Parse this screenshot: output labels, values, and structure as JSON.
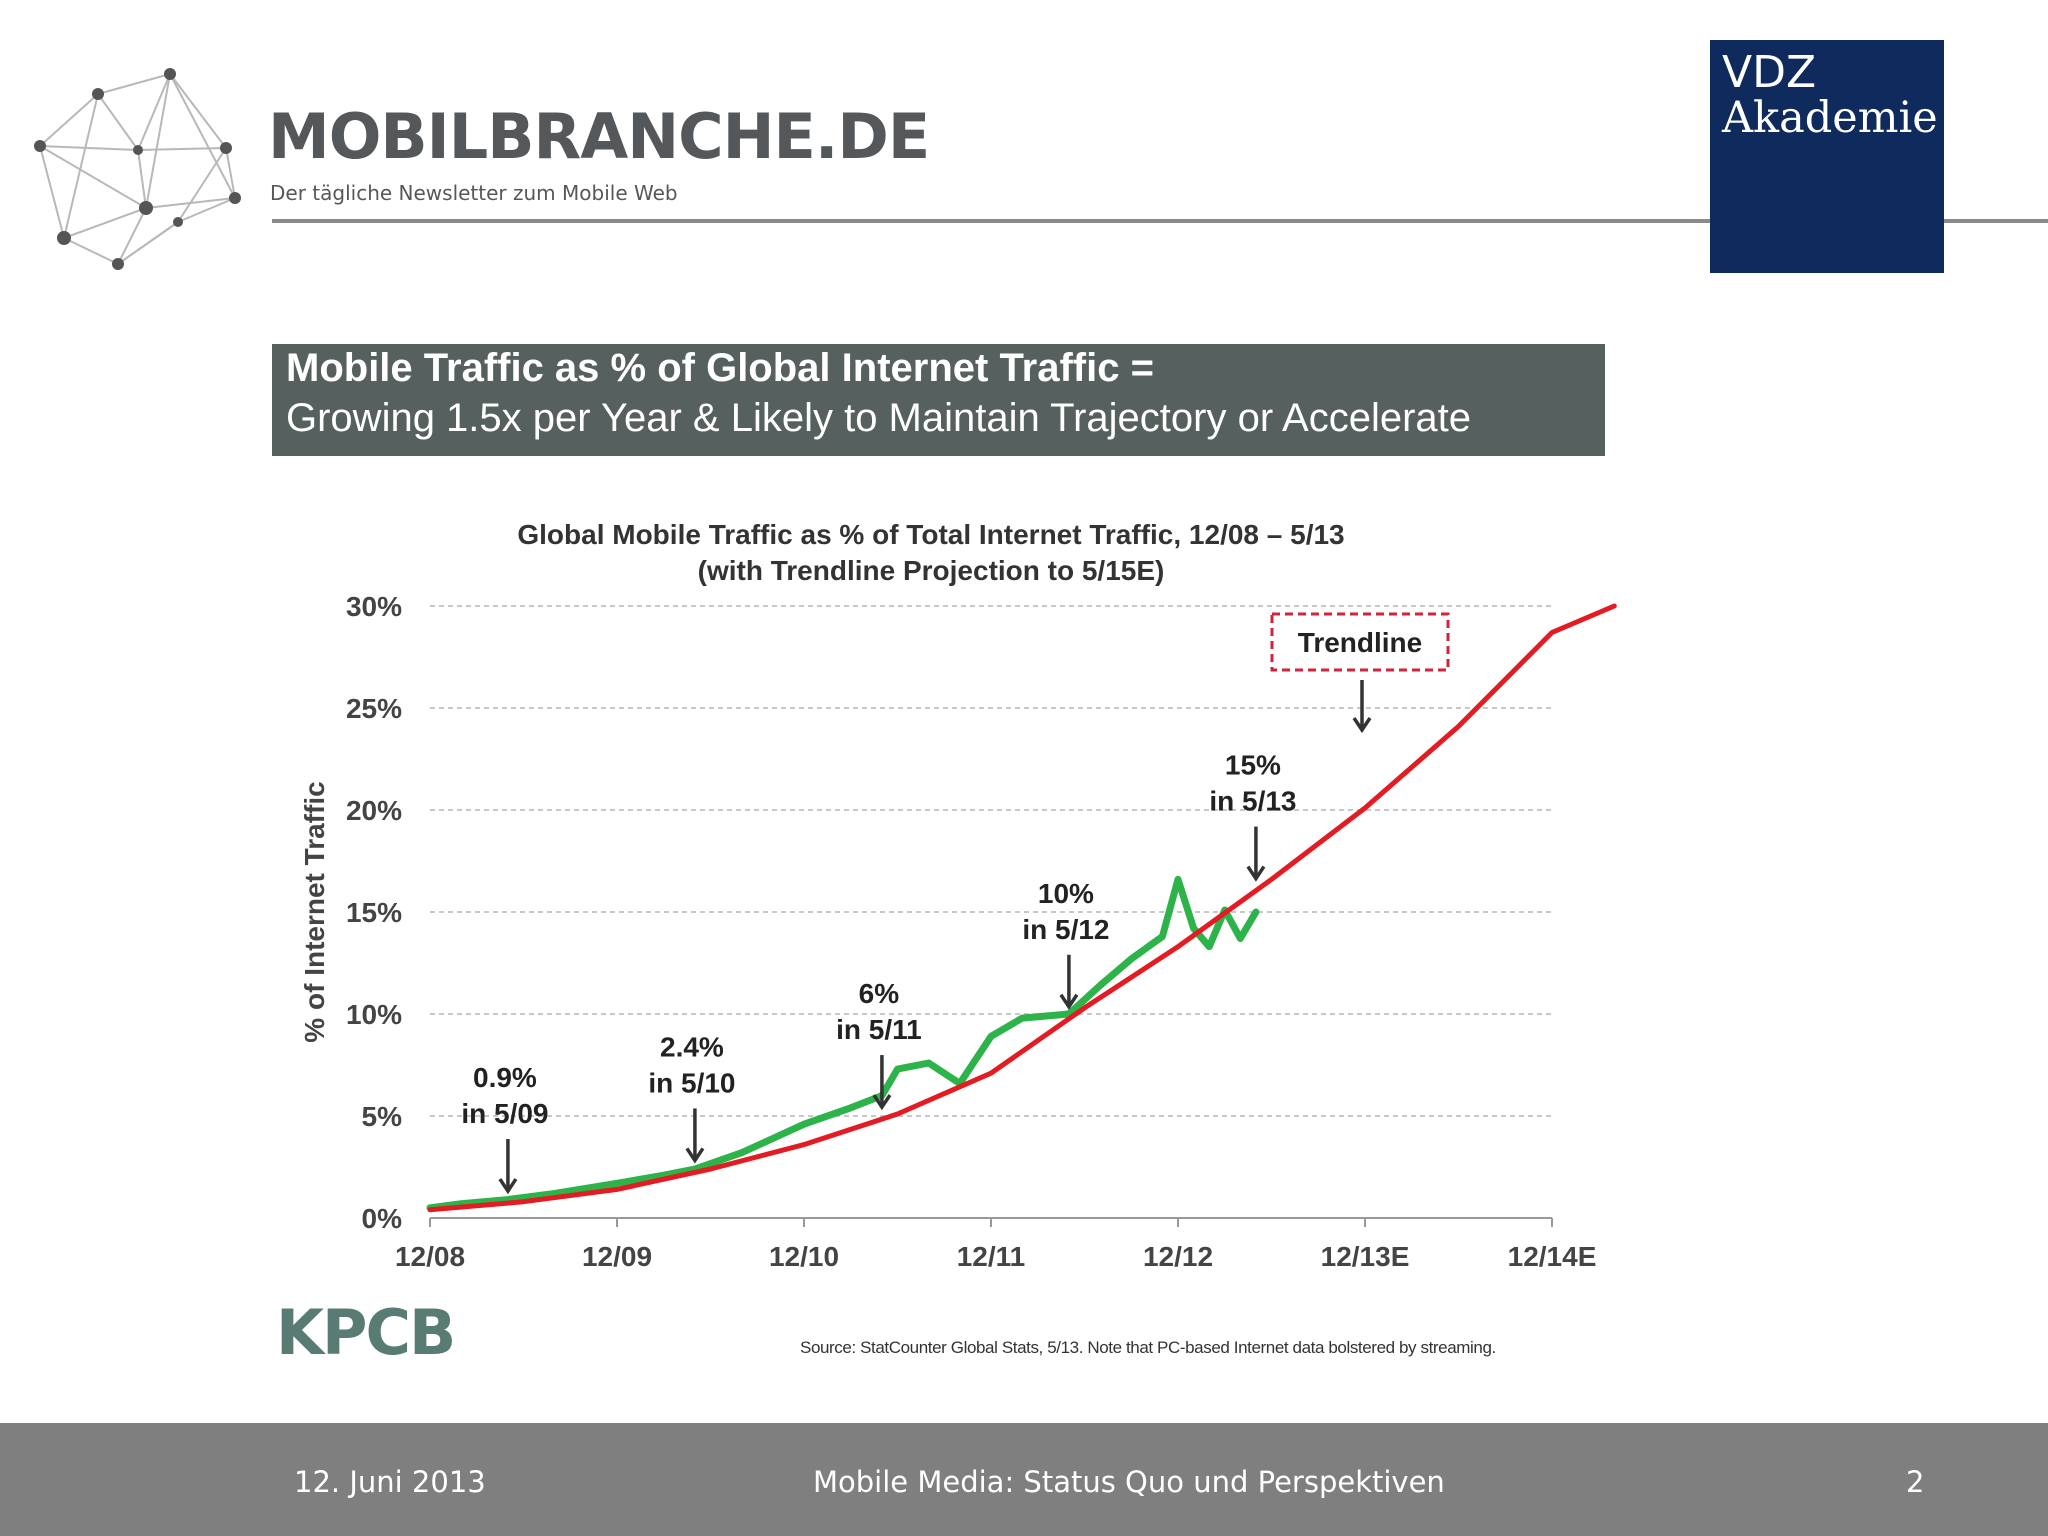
{
  "header": {
    "brand_title": "MOBILBRANCHE.DE",
    "brand_subtitle": "Der tägliche Newsletter zum Mobile Web",
    "partner_line1": "VDZ",
    "partner_line2": "Akademie"
  },
  "headline": {
    "line1": "Mobile Traffic as % of Global Internet Traffic =",
    "line2": "Growing 1.5x per Year & Likely to Maintain Trajectory or Accelerate"
  },
  "chart_data": {
    "type": "line",
    "title": "Global Mobile Traffic as % of Total Internet Traffic, 12/08 – 5/13",
    "subtitle": "(with Trendline Projection to 5/15E)",
    "xlabel": "",
    "ylabel": "% of Internet Traffic",
    "x_ticks": [
      "12/08",
      "12/09",
      "12/10",
      "12/11",
      "12/12",
      "12/13E",
      "12/14E"
    ],
    "y_ticks": [
      "0%",
      "5%",
      "10%",
      "15%",
      "20%",
      "25%",
      "30%"
    ],
    "xlim": [
      "12/08",
      "5/15"
    ],
    "ylim": [
      0,
      30
    ],
    "grid": "horizontal dashed",
    "colors": {
      "actual": "#2db34a",
      "trendline": "#e31b23",
      "annotation_box": "#d2233c"
    },
    "series": [
      {
        "kind": "actual",
        "x": [
          "12/08",
          "2/09",
          "5/09",
          "8/09",
          "12/09",
          "3/10",
          "5/10",
          "8/10",
          "12/10",
          "3/11",
          "5/11",
          "6/11",
          "8/11",
          "10/11",
          "12/11",
          "2/12",
          "5/12",
          "7/12",
          "9/12",
          "11/12",
          "12/12",
          "1/13",
          "2/13",
          "3/13",
          "4/13",
          "5/13"
        ],
        "values": [
          0.5,
          0.7,
          0.9,
          1.2,
          1.7,
          2.1,
          2.4,
          3.2,
          4.6,
          5.4,
          6.0,
          7.3,
          7.6,
          6.6,
          8.9,
          9.8,
          10.0,
          11.4,
          12.7,
          13.8,
          16.6,
          14.2,
          13.3,
          15.1,
          13.7,
          15.0
        ]
      },
      {
        "kind": "trendline",
        "x": [
          "12/08",
          "6/09",
          "12/09",
          "6/10",
          "12/10",
          "6/11",
          "12/11",
          "6/12",
          "12/12",
          "6/13",
          "12/13",
          "6/14",
          "12/14",
          "4/15"
        ],
        "values": [
          0.4,
          0.8,
          1.4,
          2.4,
          3.6,
          5.1,
          7.1,
          10.3,
          13.3,
          16.6,
          20.1,
          24.1,
          28.7,
          30.0
        ]
      }
    ],
    "annotations": [
      {
        "line1": "0.9%",
        "line2": "in 5/09",
        "x": "5/09"
      },
      {
        "line1": "2.4%",
        "line2": "in 5/10",
        "x": "5/10"
      },
      {
        "line1": "6%",
        "line2": "in 5/11",
        "x": "5/11"
      },
      {
        "line1": "10%",
        "line2": "in 5/12",
        "x": "5/12"
      },
      {
        "line1": "15%",
        "line2": "in 5/13",
        "x": "5/13"
      }
    ],
    "legend_box": {
      "label": "Trendline",
      "placement": "top-right"
    }
  },
  "branding": {
    "kpcb": "KPCB"
  },
  "source_note": "Source: StatCounter Global Stats, 5/13. Note that PC-based Internet data bolstered by streaming.",
  "footer": {
    "date": "12. Juni 2013",
    "title": "Mobile Media: Status Quo und Perspektiven",
    "page": "2"
  }
}
